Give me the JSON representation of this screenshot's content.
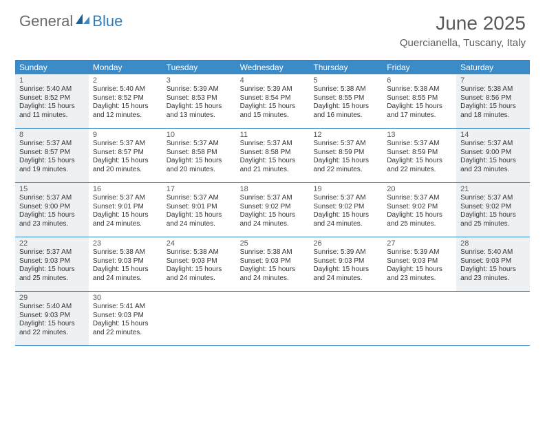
{
  "brand": {
    "part1": "General",
    "part2": "Blue"
  },
  "title": "June 2025",
  "location": "Quercianella, Tuscany, Italy",
  "colors": {
    "header_bg": "#3b8bc9",
    "border": "#2f7fbf",
    "shaded_bg": "#eef1f3",
    "text": "#333333",
    "muted": "#5a5a5a",
    "white": "#ffffff"
  },
  "dow": [
    "Sunday",
    "Monday",
    "Tuesday",
    "Wednesday",
    "Thursday",
    "Friday",
    "Saturday"
  ],
  "weeks": [
    [
      {
        "n": "1",
        "shaded": true,
        "sr": "Sunrise: 5:40 AM",
        "ss": "Sunset: 8:52 PM",
        "d1": "Daylight: 15 hours",
        "d2": "and 11 minutes."
      },
      {
        "n": "2",
        "shaded": false,
        "sr": "Sunrise: 5:40 AM",
        "ss": "Sunset: 8:52 PM",
        "d1": "Daylight: 15 hours",
        "d2": "and 12 minutes."
      },
      {
        "n": "3",
        "shaded": false,
        "sr": "Sunrise: 5:39 AM",
        "ss": "Sunset: 8:53 PM",
        "d1": "Daylight: 15 hours",
        "d2": "and 13 minutes."
      },
      {
        "n": "4",
        "shaded": false,
        "sr": "Sunrise: 5:39 AM",
        "ss": "Sunset: 8:54 PM",
        "d1": "Daylight: 15 hours",
        "d2": "and 15 minutes."
      },
      {
        "n": "5",
        "shaded": false,
        "sr": "Sunrise: 5:38 AM",
        "ss": "Sunset: 8:55 PM",
        "d1": "Daylight: 15 hours",
        "d2": "and 16 minutes."
      },
      {
        "n": "6",
        "shaded": false,
        "sr": "Sunrise: 5:38 AM",
        "ss": "Sunset: 8:55 PM",
        "d1": "Daylight: 15 hours",
        "d2": "and 17 minutes."
      },
      {
        "n": "7",
        "shaded": true,
        "sr": "Sunrise: 5:38 AM",
        "ss": "Sunset: 8:56 PM",
        "d1": "Daylight: 15 hours",
        "d2": "and 18 minutes."
      }
    ],
    [
      {
        "n": "8",
        "shaded": true,
        "sr": "Sunrise: 5:37 AM",
        "ss": "Sunset: 8:57 PM",
        "d1": "Daylight: 15 hours",
        "d2": "and 19 minutes."
      },
      {
        "n": "9",
        "shaded": false,
        "sr": "Sunrise: 5:37 AM",
        "ss": "Sunset: 8:57 PM",
        "d1": "Daylight: 15 hours",
        "d2": "and 20 minutes."
      },
      {
        "n": "10",
        "shaded": false,
        "sr": "Sunrise: 5:37 AM",
        "ss": "Sunset: 8:58 PM",
        "d1": "Daylight: 15 hours",
        "d2": "and 20 minutes."
      },
      {
        "n": "11",
        "shaded": false,
        "sr": "Sunrise: 5:37 AM",
        "ss": "Sunset: 8:58 PM",
        "d1": "Daylight: 15 hours",
        "d2": "and 21 minutes."
      },
      {
        "n": "12",
        "shaded": false,
        "sr": "Sunrise: 5:37 AM",
        "ss": "Sunset: 8:59 PM",
        "d1": "Daylight: 15 hours",
        "d2": "and 22 minutes."
      },
      {
        "n": "13",
        "shaded": false,
        "sr": "Sunrise: 5:37 AM",
        "ss": "Sunset: 8:59 PM",
        "d1": "Daylight: 15 hours",
        "d2": "and 22 minutes."
      },
      {
        "n": "14",
        "shaded": true,
        "sr": "Sunrise: 5:37 AM",
        "ss": "Sunset: 9:00 PM",
        "d1": "Daylight: 15 hours",
        "d2": "and 23 minutes."
      }
    ],
    [
      {
        "n": "15",
        "shaded": true,
        "sr": "Sunrise: 5:37 AM",
        "ss": "Sunset: 9:00 PM",
        "d1": "Daylight: 15 hours",
        "d2": "and 23 minutes."
      },
      {
        "n": "16",
        "shaded": false,
        "sr": "Sunrise: 5:37 AM",
        "ss": "Sunset: 9:01 PM",
        "d1": "Daylight: 15 hours",
        "d2": "and 24 minutes."
      },
      {
        "n": "17",
        "shaded": false,
        "sr": "Sunrise: 5:37 AM",
        "ss": "Sunset: 9:01 PM",
        "d1": "Daylight: 15 hours",
        "d2": "and 24 minutes."
      },
      {
        "n": "18",
        "shaded": false,
        "sr": "Sunrise: 5:37 AM",
        "ss": "Sunset: 9:02 PM",
        "d1": "Daylight: 15 hours",
        "d2": "and 24 minutes."
      },
      {
        "n": "19",
        "shaded": false,
        "sr": "Sunrise: 5:37 AM",
        "ss": "Sunset: 9:02 PM",
        "d1": "Daylight: 15 hours",
        "d2": "and 24 minutes."
      },
      {
        "n": "20",
        "shaded": false,
        "sr": "Sunrise: 5:37 AM",
        "ss": "Sunset: 9:02 PM",
        "d1": "Daylight: 15 hours",
        "d2": "and 25 minutes."
      },
      {
        "n": "21",
        "shaded": true,
        "sr": "Sunrise: 5:37 AM",
        "ss": "Sunset: 9:02 PM",
        "d1": "Daylight: 15 hours",
        "d2": "and 25 minutes."
      }
    ],
    [
      {
        "n": "22",
        "shaded": true,
        "sr": "Sunrise: 5:37 AM",
        "ss": "Sunset: 9:03 PM",
        "d1": "Daylight: 15 hours",
        "d2": "and 25 minutes."
      },
      {
        "n": "23",
        "shaded": false,
        "sr": "Sunrise: 5:38 AM",
        "ss": "Sunset: 9:03 PM",
        "d1": "Daylight: 15 hours",
        "d2": "and 24 minutes."
      },
      {
        "n": "24",
        "shaded": false,
        "sr": "Sunrise: 5:38 AM",
        "ss": "Sunset: 9:03 PM",
        "d1": "Daylight: 15 hours",
        "d2": "and 24 minutes."
      },
      {
        "n": "25",
        "shaded": false,
        "sr": "Sunrise: 5:38 AM",
        "ss": "Sunset: 9:03 PM",
        "d1": "Daylight: 15 hours",
        "d2": "and 24 minutes."
      },
      {
        "n": "26",
        "shaded": false,
        "sr": "Sunrise: 5:39 AM",
        "ss": "Sunset: 9:03 PM",
        "d1": "Daylight: 15 hours",
        "d2": "and 24 minutes."
      },
      {
        "n": "27",
        "shaded": false,
        "sr": "Sunrise: 5:39 AM",
        "ss": "Sunset: 9:03 PM",
        "d1": "Daylight: 15 hours",
        "d2": "and 23 minutes."
      },
      {
        "n": "28",
        "shaded": true,
        "sr": "Sunrise: 5:40 AM",
        "ss": "Sunset: 9:03 PM",
        "d1": "Daylight: 15 hours",
        "d2": "and 23 minutes."
      }
    ],
    [
      {
        "n": "29",
        "shaded": true,
        "sr": "Sunrise: 5:40 AM",
        "ss": "Sunset: 9:03 PM",
        "d1": "Daylight: 15 hours",
        "d2": "and 22 minutes."
      },
      {
        "n": "30",
        "shaded": false,
        "sr": "Sunrise: 5:41 AM",
        "ss": "Sunset: 9:03 PM",
        "d1": "Daylight: 15 hours",
        "d2": "and 22 minutes."
      },
      null,
      null,
      null,
      null,
      null
    ]
  ]
}
